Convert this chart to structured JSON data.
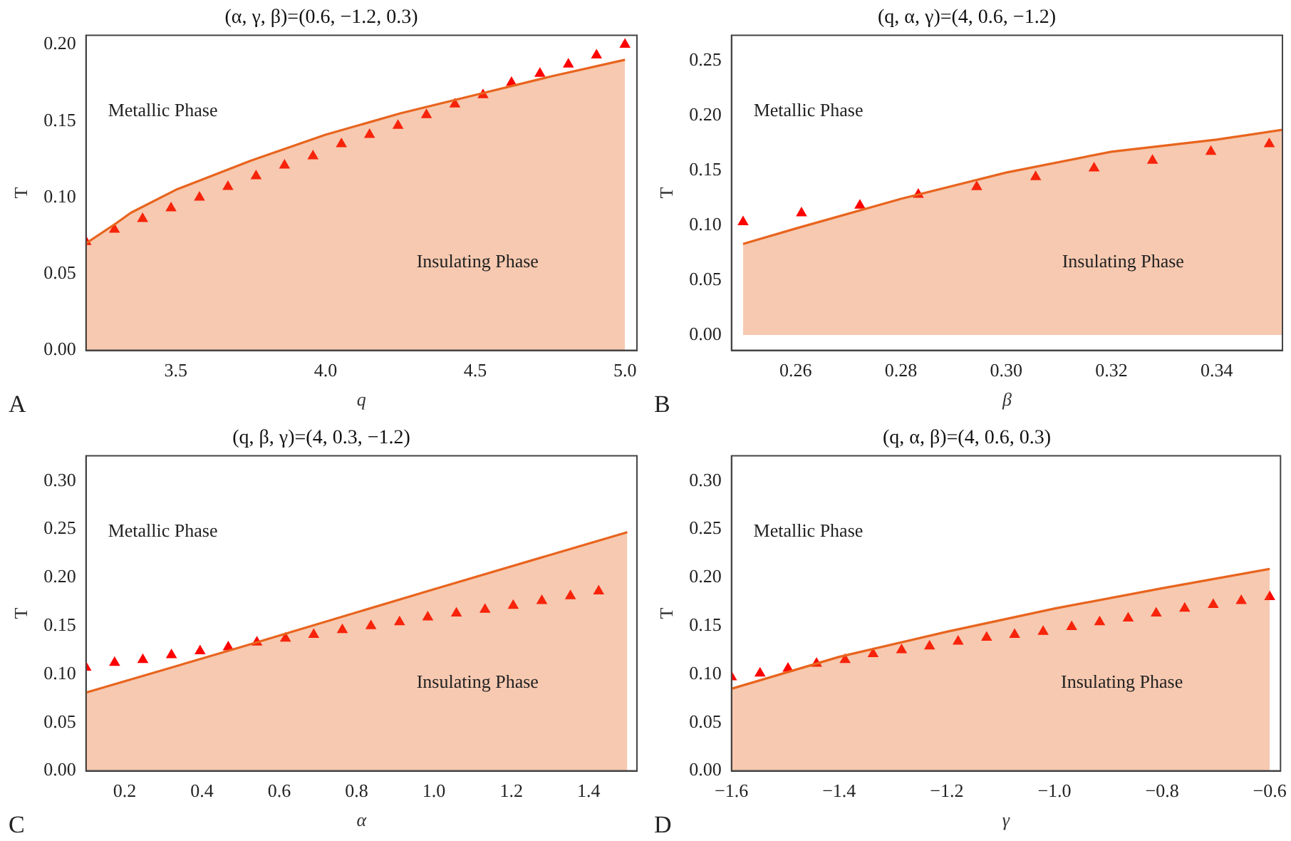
{
  "chart_data": [
    {
      "type": "area",
      "title": "(α, γ, β)=(0.6, −1.2, 0.3)",
      "xlabel": "q",
      "ylabel": "T",
      "annotations": [
        "Metallic Phase",
        "Insulating Phase",
        "A"
      ],
      "xlim": [
        3.2,
        5.04
      ],
      "xticks": [
        {
          "value": 3.5,
          "label": "3.5"
        },
        {
          "value": 4.0,
          "label": "4.0"
        },
        {
          "value": 4.5,
          "label": "4.5"
        },
        {
          "value": 5.0,
          "label": "5.0"
        }
      ],
      "ylim": [
        0,
        0.206
      ],
      "yticks": [
        {
          "value": 0,
          "label": "0.00"
        },
        {
          "value": 0.05,
          "label": "0.05"
        },
        {
          "value": 0.1,
          "label": "0.10"
        },
        {
          "value": 0.15,
          "label": "0.15"
        },
        {
          "value": 0.2,
          "label": "0.20"
        }
      ],
      "grid": false,
      "legend": false,
      "series": [
        {
          "type": "area",
          "color": "#e8641e",
          "x": [
            3.2,
            3.3,
            3.35,
            3.5,
            3.75,
            4.0,
            4.25,
            4.5,
            4.75,
            5.0
          ],
          "values": [
            0.07,
            0.083,
            0.09,
            0.105,
            0.124,
            0.141,
            0.155,
            0.167,
            0.179,
            0.19
          ]
        },
        {
          "type": "scatter",
          "marker": "triangle",
          "color": "#ff0000",
          "x": [
            3.2,
            3.295,
            3.389,
            3.484,
            3.579,
            3.674,
            3.768,
            3.863,
            3.958,
            4.053,
            4.147,
            4.242,
            4.337,
            4.432,
            4.526,
            4.621,
            4.716,
            4.811,
            4.905,
            5.0
          ],
          "values": [
            0.071,
            0.079,
            0.086,
            0.093,
            0.1,
            0.107,
            0.114,
            0.121,
            0.127,
            0.135,
            0.141,
            0.147,
            0.154,
            0.161,
            0.167,
            0.175,
            0.181,
            0.187,
            0.193,
            0.2
          ]
        }
      ]
    },
    {
      "type": "area",
      "title": "(q, α, γ)=(4, 0.6, −1.2)",
      "xlabel": "β",
      "ylabel": "T",
      "annotations": [
        "Metallic Phase",
        "Insulating Phase",
        "B"
      ],
      "xlim": [
        0.2478,
        0.3525
      ],
      "xticks": [
        {
          "value": 0.26,
          "label": "0.26"
        },
        {
          "value": 0.28,
          "label": "0.28"
        },
        {
          "value": 0.3,
          "label": "0.30"
        },
        {
          "value": 0.32,
          "label": "0.32"
        },
        {
          "value": 0.34,
          "label": "0.34"
        }
      ],
      "ylim": [
        -0.014,
        0.273
      ],
      "yticks": [
        {
          "value": 0,
          "label": "0.00"
        },
        {
          "value": 0.05,
          "label": "0.05"
        },
        {
          "value": 0.1,
          "label": "0.10"
        },
        {
          "value": 0.15,
          "label": "0.15"
        },
        {
          "value": 0.2,
          "label": "0.20"
        },
        {
          "value": 0.25,
          "label": "0.25"
        }
      ],
      "grid": false,
      "legend": false,
      "series": [
        {
          "type": "area",
          "color": "#e8641e",
          "x": [
            0.25,
            0.26,
            0.28,
            0.3,
            0.32,
            0.34,
            0.3525
          ],
          "values": [
            0.083,
            0.097,
            0.124,
            0.148,
            0.167,
            0.178,
            0.187
          ]
        },
        {
          "type": "scatter",
          "marker": "triangle",
          "color": "#ff0000",
          "x": [
            0.25,
            0.2611,
            0.2722,
            0.2833,
            0.2944,
            0.3056,
            0.3167,
            0.3278,
            0.3389,
            0.35
          ],
          "values": [
            0.103,
            0.111,
            0.118,
            0.128,
            0.135,
            0.144,
            0.152,
            0.159,
            0.167,
            0.174
          ]
        }
      ]
    },
    {
      "type": "area",
      "title": "(q, β, γ)=(4, 0.3, −1.2)",
      "xlabel": "α",
      "ylabel": "T",
      "annotations": [
        "Metallic Phase",
        "Insulating Phase",
        "C"
      ],
      "xlim": [
        0.1,
        1.525
      ],
      "xticks": [
        {
          "value": 0.2,
          "label": "0.2"
        },
        {
          "value": 0.4,
          "label": "0.4"
        },
        {
          "value": 0.6,
          "label": "0.6"
        },
        {
          "value": 0.8,
          "label": "0.8"
        },
        {
          "value": 1.0,
          "label": "1.0"
        },
        {
          "value": 1.2,
          "label": "1.2"
        },
        {
          "value": 1.4,
          "label": "1.4"
        }
      ],
      "ylim": [
        0,
        0.326
      ],
      "yticks": [
        {
          "value": 0,
          "label": "0.00"
        },
        {
          "value": 0.05,
          "label": "0.05"
        },
        {
          "value": 0.1,
          "label": "0.10"
        },
        {
          "value": 0.15,
          "label": "0.15"
        },
        {
          "value": 0.2,
          "label": "0.20"
        },
        {
          "value": 0.25,
          "label": "0.25"
        },
        {
          "value": 0.3,
          "label": "0.30"
        }
      ],
      "grid": false,
      "legend": false,
      "series": [
        {
          "type": "area",
          "color": "#e8641e",
          "x": [
            0.1,
            0.5,
            1.0,
            1.5
          ],
          "values": [
            0.081,
            0.128,
            0.188,
            0.247
          ]
        },
        {
          "type": "scatter",
          "marker": "triangle",
          "color": "#ff0000",
          "x": [
            0.1,
            0.174,
            0.247,
            0.321,
            0.395,
            0.468,
            0.542,
            0.616,
            0.689,
            0.763,
            0.837,
            0.911,
            0.984,
            1.058,
            1.132,
            1.205,
            1.279,
            1.353,
            1.426
          ],
          "values": [
            0.107,
            0.112,
            0.115,
            0.12,
            0.124,
            0.128,
            0.133,
            0.137,
            0.141,
            0.146,
            0.15,
            0.154,
            0.159,
            0.163,
            0.167,
            0.171,
            0.176,
            0.181,
            0.186
          ]
        }
      ]
    },
    {
      "type": "area",
      "title": "(q, α, β)=(4, 0.6, 0.3)",
      "xlabel": "γ",
      "ylabel": "T",
      "annotations": [
        "Metallic Phase",
        "Insulating Phase",
        "D"
      ],
      "xlim": [
        -1.6,
        -0.58
      ],
      "xticks": [
        {
          "value": -1.6,
          "label": "−1.6"
        },
        {
          "value": -1.4,
          "label": "−1.4"
        },
        {
          "value": -1.2,
          "label": "−1.2"
        },
        {
          "value": -1.0,
          "label": "−1.0"
        },
        {
          "value": -0.8,
          "label": "−0.8"
        },
        {
          "value": -0.6,
          "label": "−0.6"
        }
      ],
      "ylim": [
        0,
        0.326
      ],
      "yticks": [
        {
          "value": 0,
          "label": "0.00"
        },
        {
          "value": 0.05,
          "label": "0.05"
        },
        {
          "value": 0.1,
          "label": "0.10"
        },
        {
          "value": 0.15,
          "label": "0.15"
        },
        {
          "value": 0.2,
          "label": "0.20"
        },
        {
          "value": 0.25,
          "label": "0.25"
        },
        {
          "value": 0.3,
          "label": "0.30"
        }
      ],
      "grid": false,
      "legend": false,
      "series": [
        {
          "type": "area",
          "color": "#e8641e",
          "x": [
            -1.6,
            -1.4,
            -1.2,
            -1.0,
            -0.8,
            -0.6
          ],
          "values": [
            0.085,
            0.118,
            0.144,
            0.168,
            0.189,
            0.209
          ]
        },
        {
          "type": "scatter",
          "marker": "triangle",
          "color": "#ff0000",
          "x": [
            -1.6,
            -1.547,
            -1.495,
            -1.442,
            -1.389,
            -1.337,
            -1.284,
            -1.232,
            -1.179,
            -1.126,
            -1.074,
            -1.021,
            -0.968,
            -0.916,
            -0.863,
            -0.811,
            -0.758,
            -0.705,
            -0.653,
            -0.6
          ],
          "values": [
            0.097,
            0.101,
            0.106,
            0.111,
            0.115,
            0.121,
            0.125,
            0.129,
            0.134,
            0.138,
            0.141,
            0.144,
            0.149,
            0.154,
            0.158,
            0.163,
            0.168,
            0.172,
            0.176,
            0.18
          ]
        }
      ]
    }
  ]
}
